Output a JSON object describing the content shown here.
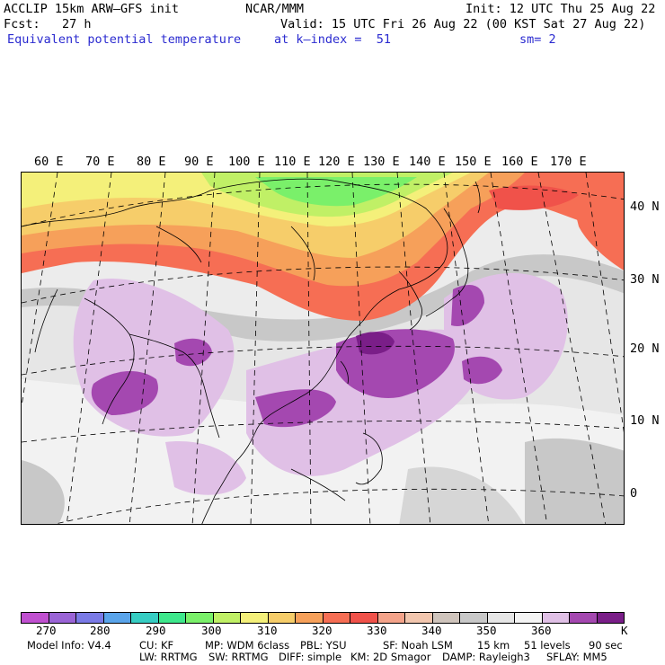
{
  "header": {
    "model": "ACCLIP 15km ARW–GFS init",
    "center": "NCAR/MMM",
    "init": "Init: 12 UTC Thu 25 Aug 22",
    "fcst": "Fcst:   27 h",
    "valid": "Valid: 15 UTC Fri 26 Aug 22 (00 KST Sat 27 Aug 22)",
    "field": "Equivalent potential temperature",
    "level": "at k–index =  51",
    "smooth": "sm= 2"
  },
  "map": {
    "lon_labels": [
      "60 E",
      "70 E",
      "80 E",
      "90 E",
      "100 E",
      "110 E",
      "120 E",
      "130 E",
      "140 E",
      "150 E",
      "160 E",
      "170 E"
    ],
    "lat_labels": [
      "40 N",
      "30 N",
      "20 N",
      "10 N",
      "0"
    ]
  },
  "colorbar": {
    "colors": [
      "#c050d0",
      "#9a64d6",
      "#7a7ae6",
      "#5aa4ea",
      "#37cdc3",
      "#3ee88c",
      "#7af06a",
      "#c0f066",
      "#f4f07a",
      "#f6cd6a",
      "#f6a05a",
      "#f66e54",
      "#f0524a",
      "#f4a38a",
      "#f2c6ae",
      "#cfc4bc",
      "#c8c8c8",
      "#e6e6e6",
      "#f4f4f4",
      "#e0c0e6",
      "#a448b0",
      "#7a1e88"
    ],
    "ticks": [
      "270",
      "280",
      "290",
      "300",
      "310",
      "320",
      "330",
      "340",
      "350",
      "360",
      "K"
    ],
    "unit": "K"
  },
  "model_info": {
    "line1": [
      "Model Info: V4.4",
      "CU: KF",
      "MP: WDM 6class",
      "PBL: YSU",
      "SF: Noah LSM",
      "15 km",
      "51 levels",
      "90 sec"
    ],
    "line2": [
      "LW: RRTMG",
      "SW: RRTMG",
      "DIFF: simple",
      "KM: 2D Smagor",
      "DAMP: Rayleigh3",
      "SFLAY: MM5"
    ]
  }
}
